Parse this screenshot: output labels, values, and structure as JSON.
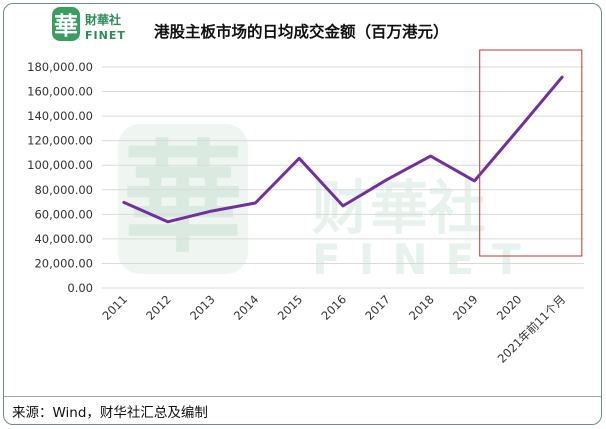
{
  "brand": {
    "logo_char": "華",
    "name_cn": "財華社",
    "name_en": "FINET",
    "color": "#2e8b57"
  },
  "title": "港股主板市场的日均成交金额（百万港元）",
  "source": "来源：Wind，财华社汇总及编制",
  "chart_data": {
    "type": "line",
    "categories": [
      "2011",
      "2012",
      "2013",
      "2014",
      "2015",
      "2016",
      "2017",
      "2018",
      "2019",
      "2020",
      "2021年前11个月"
    ],
    "series": [
      {
        "values": [
          69700,
          53900,
          62600,
          69200,
          105600,
          66900,
          88200,
          107400,
          87200,
          129200,
          171800
        ]
      }
    ],
    "ylim": [
      0,
      180000
    ],
    "yticks": [
      "0.00",
      "20,000.00",
      "40,000.00",
      "60,000.00",
      "80,000.00",
      "100,000.00",
      "120,000.00",
      "140,000.00",
      "160,000.00",
      "180,000.00"
    ],
    "grid": true,
    "line_color": "#7030a0",
    "gridline_color": "#d9d9d9",
    "highlight": {
      "from_category": "2020",
      "to_category": "2021年前11个月",
      "color": "#c0392b"
    },
    "watermark": {
      "logo_char": "華",
      "name_cn": "财華社",
      "name_en": "FINET",
      "color": "#2e8b57"
    }
  }
}
